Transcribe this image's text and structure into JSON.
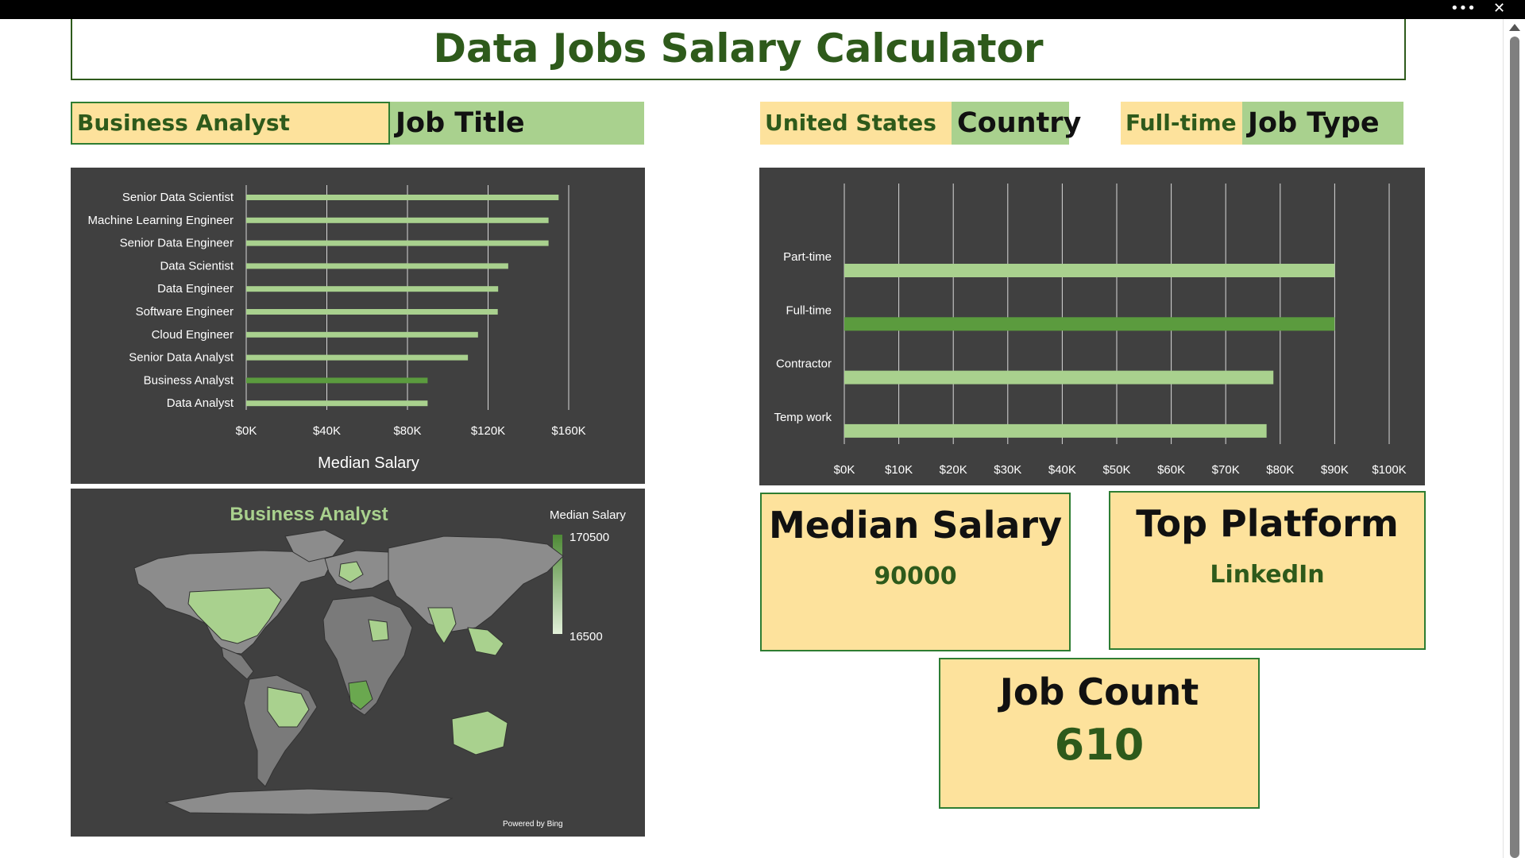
{
  "window": {
    "menu_glyph": "•••",
    "close_glyph": "✕"
  },
  "title": "Data Jobs Salary Calculator",
  "filters": {
    "job_title": {
      "value": "Business Analyst",
      "label": "Job Title"
    },
    "country": {
      "value": "United States",
      "label": "Country"
    },
    "job_type": {
      "value": "Full-time",
      "label": "Job Type"
    }
  },
  "colors": {
    "accent_green": "#5b9b3e",
    "light_green": "#a9d18e",
    "dark_green": "#2e5a1b",
    "panel_bg": "#404040",
    "kpi_bg": "#fde29c"
  },
  "chart_data": [
    {
      "type": "bar",
      "orientation": "horizontal",
      "categories": [
        "Senior Data Scientist",
        "Machine Learning Engineer",
        "Senior Data Engineer",
        "Data Scientist",
        "Data Engineer",
        "Software Engineer",
        "Cloud Engineer",
        "Senior Data Analyst",
        "Business Analyst",
        "Data Analyst"
      ],
      "values": [
        155000,
        150000,
        150000,
        130000,
        125000,
        124800,
        115000,
        110000,
        90000,
        90000
      ],
      "highlight": "Business Analyst",
      "xlabel": "Median Salary",
      "xticks": [
        "$0K",
        "$40K",
        "$80K",
        "$120K",
        "$160K"
      ],
      "xlim": [
        0,
        160000
      ],
      "grid": true
    },
    {
      "type": "bar",
      "orientation": "horizontal",
      "categories": [
        "Part-time",
        "Full-time",
        "Contractor",
        "Temp work"
      ],
      "values": [
        90000,
        90000,
        78750,
        77500
      ],
      "highlight": "Full-time",
      "xticks": [
        "$0K",
        "$10K",
        "$20K",
        "$30K",
        "$40K",
        "$50K",
        "$60K",
        "$70K",
        "$80K",
        "$90K",
        "$100K"
      ],
      "xlim": [
        0,
        100000
      ],
      "grid": true
    }
  ],
  "map": {
    "title": "Business Analyst",
    "legend_title": "Median Salary",
    "legend_max": "170500",
    "legend_min": "16500",
    "credit": "Powered by Bing"
  },
  "kpis": {
    "median_salary": {
      "label": "Median Salary",
      "value": "90000"
    },
    "top_platform": {
      "label": "Top Platform",
      "value": "LinkedIn"
    },
    "job_count": {
      "label": "Job Count",
      "value": "610"
    }
  }
}
